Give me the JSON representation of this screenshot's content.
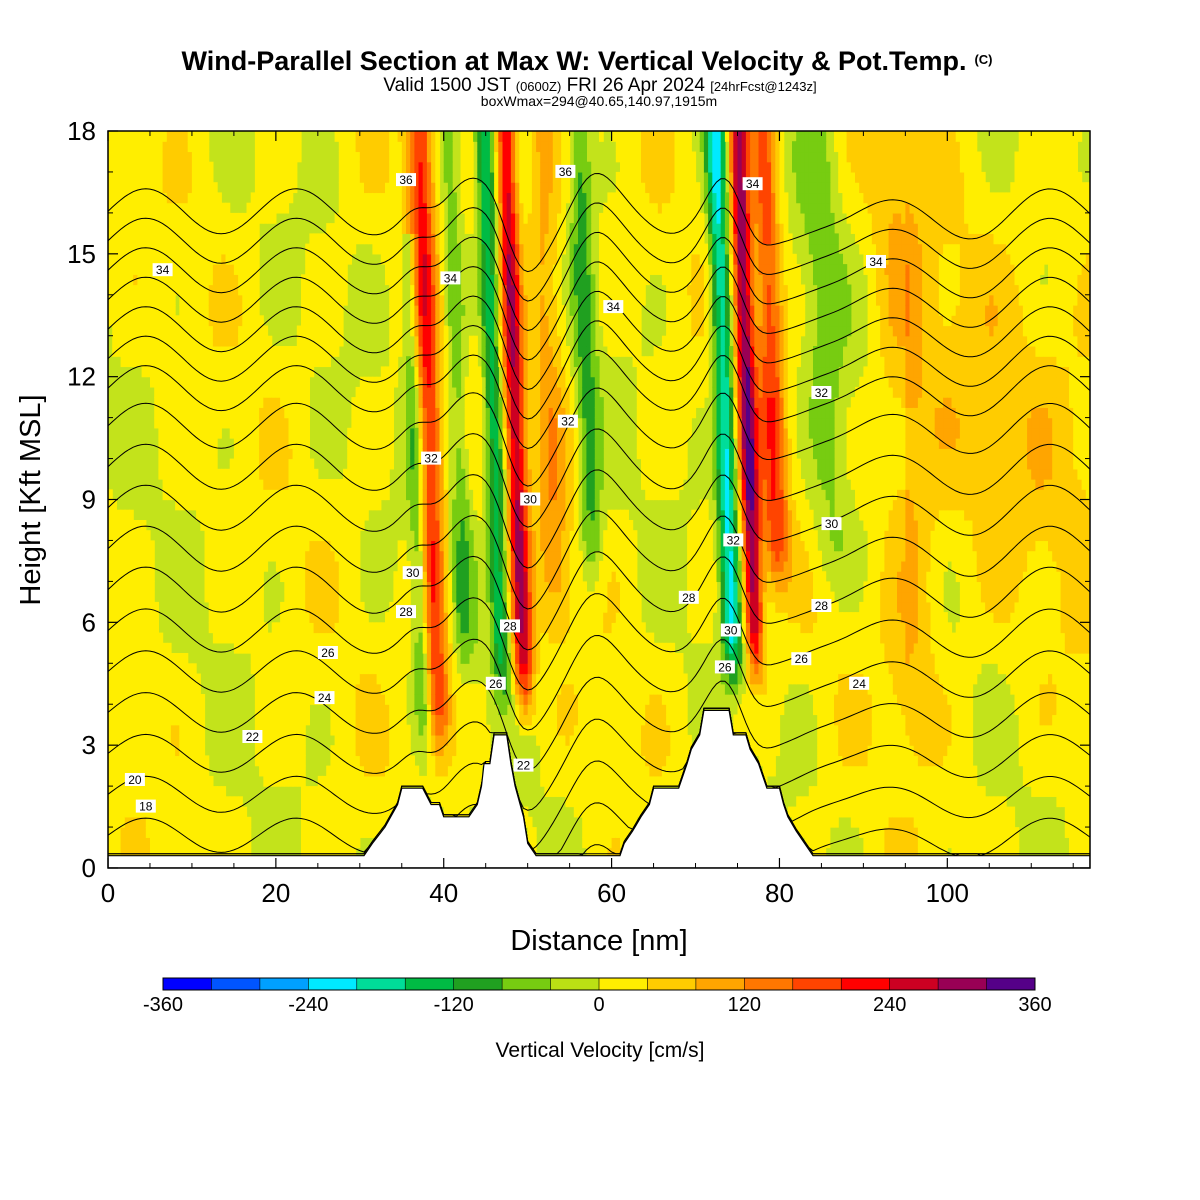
{
  "header": {
    "title_main": "Wind-Parallel Section at Max W: Vertical Velocity & Pot.Temp.",
    "title_copyright": "(C)",
    "valid_prefix": "Valid 1500 JST",
    "valid_utc": "(0600Z)",
    "valid_date": "FRI 26 Apr 2024",
    "forecast_info": "[24hrFcst@1243z]",
    "box_info": "boxWmax=294@40.65,140.97,1915m"
  },
  "chart_data": {
    "type": "heatmap",
    "xlabel": "Distance [nm]",
    "ylabel": "Height [Kft MSL]",
    "xlim": [
      0,
      117
    ],
    "ylim": [
      0,
      18
    ],
    "x_ticks": [
      0,
      20,
      40,
      60,
      80,
      100
    ],
    "y_ticks": [
      0,
      3,
      6,
      9,
      12,
      15,
      18
    ],
    "colorbar": {
      "title": "Vertical Velocity [cm/s]",
      "range": [
        -360,
        360
      ],
      "step": 40,
      "tick_labels": [
        "-360",
        "-240",
        "-120",
        "0",
        "120",
        "240",
        "360"
      ],
      "colors": [
        "#0000ff",
        "#0055ff",
        "#00a0ff",
        "#00eaff",
        "#00dd99",
        "#00bb44",
        "#20a020",
        "#77cc11",
        "#bbe014",
        "#ffee00",
        "#ffcc00",
        "#ffa500",
        "#ff7700",
        "#ff4400",
        "#ff0000",
        "#cc0022",
        "#990055",
        "#550088"
      ]
    },
    "vertical_velocity_features": [
      {
        "x": 38.5,
        "peak": 200,
        "half_width": 1.5,
        "z_bottom": 2.0,
        "z_top": 18
      },
      {
        "x": 36.8,
        "peak": -100,
        "half_width": 1.0,
        "z_bottom": 2.0,
        "z_top": 15
      },
      {
        "x": 42.0,
        "peak": -80,
        "half_width": 1.3,
        "z_bottom": 4.0,
        "z_top": 18
      },
      {
        "x": 48.8,
        "peak": 260,
        "half_width": 1.2,
        "z_bottom": 3.0,
        "z_top": 18
      },
      {
        "x": 46.3,
        "peak": -160,
        "half_width": 1.2,
        "z_bottom": 3.5,
        "z_top": 18
      },
      {
        "x": 53.0,
        "peak": 90,
        "half_width": 2.0,
        "z_bottom": 5.0,
        "z_top": 18
      },
      {
        "x": 57.5,
        "peak": -100,
        "half_width": 1.3,
        "z_bottom": 6.0,
        "z_top": 18
      },
      {
        "x": 76.5,
        "peak": 300,
        "half_width": 1.1,
        "z_bottom": 4.0,
        "z_top": 18
      },
      {
        "x": 73.8,
        "peak": -220,
        "half_width": 1.2,
        "z_bottom": 3.8,
        "z_top": 18
      },
      {
        "x": 79.5,
        "peak": 170,
        "half_width": 1.6,
        "z_bottom": 6.0,
        "z_top": 18
      },
      {
        "x": 86.0,
        "peak": -60,
        "half_width": 2.5,
        "z_bottom": 6.0,
        "z_top": 18
      },
      {
        "x": 95.0,
        "peak": 60,
        "half_width": 3.0,
        "z_bottom": 2.0,
        "z_top": 18
      }
    ],
    "terrain": [
      [
        0,
        0.3
      ],
      [
        30.5,
        0.3
      ],
      [
        31.5,
        0.6
      ],
      [
        33,
        1.0
      ],
      [
        34.5,
        1.55
      ],
      [
        35,
        1.95
      ],
      [
        37.5,
        1.95
      ],
      [
        38.5,
        1.55
      ],
      [
        39.5,
        1.55
      ],
      [
        40,
        1.25
      ],
      [
        43,
        1.25
      ],
      [
        44,
        1.55
      ],
      [
        44.5,
        2.0
      ],
      [
        44.8,
        2.55
      ],
      [
        45.5,
        2.55
      ],
      [
        46,
        3.25
      ],
      [
        47.5,
        3.25
      ],
      [
        48,
        2.55
      ],
      [
        48.5,
        2.0
      ],
      [
        49.5,
        1.25
      ],
      [
        50,
        0.6
      ],
      [
        51,
        0.3
      ],
      [
        61,
        0.3
      ],
      [
        61.5,
        0.6
      ],
      [
        62.5,
        0.9
      ],
      [
        63.5,
        1.25
      ],
      [
        64.5,
        1.55
      ],
      [
        65,
        1.95
      ],
      [
        68,
        1.95
      ],
      [
        68.5,
        2.25
      ],
      [
        69,
        2.55
      ],
      [
        69.5,
        2.9
      ],
      [
        70.5,
        3.25
      ],
      [
        71,
        3.85
      ],
      [
        74,
        3.85
      ],
      [
        74.5,
        3.25
      ],
      [
        76,
        3.25
      ],
      [
        76.5,
        2.9
      ],
      [
        77.5,
        2.55
      ],
      [
        78,
        2.25
      ],
      [
        78.5,
        1.95
      ],
      [
        80,
        1.95
      ],
      [
        80.5,
        1.55
      ],
      [
        81,
        1.25
      ],
      [
        82,
        0.9
      ],
      [
        83,
        0.6
      ],
      [
        84,
        0.3
      ],
      [
        117,
        0.3
      ]
    ],
    "potential_temperature_contours": {
      "units": "C",
      "levels": [
        17,
        18,
        19,
        20,
        21,
        22,
        23,
        24,
        25,
        26,
        27,
        28,
        29,
        30,
        31,
        32,
        33,
        34,
        35,
        36
      ],
      "labels": [
        {
          "text": "18",
          "x": 4.5,
          "y": 1.5
        },
        {
          "text": "20",
          "x": 3.2,
          "y": 2.15
        },
        {
          "text": "22",
          "x": 17.2,
          "y": 3.2
        },
        {
          "text": "24",
          "x": 25.8,
          "y": 4.15
        },
        {
          "text": "26",
          "x": 26.2,
          "y": 5.25
        },
        {
          "text": "28",
          "x": 35.5,
          "y": 6.25
        },
        {
          "text": "30",
          "x": 36.3,
          "y": 7.2
        },
        {
          "text": "32",
          "x": 38.5,
          "y": 10.0
        },
        {
          "text": "34",
          "x": 40.8,
          "y": 14.4
        },
        {
          "text": "36",
          "x": 35.5,
          "y": 16.8
        },
        {
          "text": "34",
          "x": 6.5,
          "y": 14.6
        },
        {
          "text": "26",
          "x": 46.2,
          "y": 4.5
        },
        {
          "text": "22",
          "x": 49.5,
          "y": 2.5
        },
        {
          "text": "28",
          "x": 47.9,
          "y": 5.9
        },
        {
          "text": "30",
          "x": 50.3,
          "y": 9.0
        },
        {
          "text": "32",
          "x": 54.8,
          "y": 10.9
        },
        {
          "text": "34",
          "x": 60.2,
          "y": 13.7
        },
        {
          "text": "36",
          "x": 54.5,
          "y": 17.0
        },
        {
          "text": "28",
          "x": 69.2,
          "y": 6.6
        },
        {
          "text": "26",
          "x": 73.5,
          "y": 4.9
        },
        {
          "text": "30",
          "x": 74.2,
          "y": 5.8
        },
        {
          "text": "32",
          "x": 74.5,
          "y": 8.0
        },
        {
          "text": "34",
          "x": 76.8,
          "y": 16.7
        },
        {
          "text": "32",
          "x": 85.0,
          "y": 11.6
        },
        {
          "text": "30",
          "x": 86.2,
          "y": 8.4
        },
        {
          "text": "28",
          "x": 85.0,
          "y": 6.4
        },
        {
          "text": "26",
          "x": 82.6,
          "y": 5.1
        },
        {
          "text": "24",
          "x": 89.5,
          "y": 4.5
        },
        {
          "text": "34",
          "x": 91.5,
          "y": 14.8
        }
      ]
    }
  }
}
